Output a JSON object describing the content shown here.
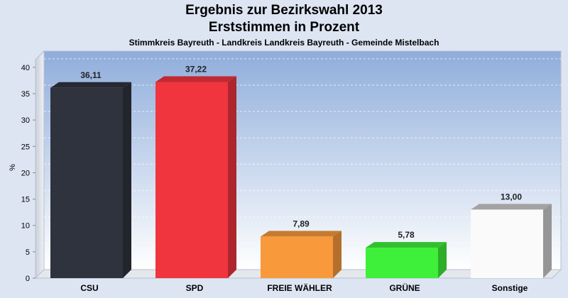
{
  "header": {
    "title": "Ergebnis zur Bezirkswahl 2013",
    "subtitle": "Erststimmen in Prozent",
    "caption": "Stimmkreis Bayreuth - Landkreis Landkreis Bayreuth - Gemeinde Mistelbach"
  },
  "chart_data": {
    "type": "bar",
    "title": "Ergebnis zur Bezirkswahl 2013",
    "subtitle": "Erststimmen in Prozent",
    "xlabel": "",
    "ylabel": "%",
    "ylim": [
      0,
      42
    ],
    "yticks": [
      0,
      5,
      10,
      15,
      20,
      25,
      30,
      35,
      40
    ],
    "grid": true,
    "categories": [
      "CSU",
      "SPD",
      "FREIE WÄHLER",
      "GRÜNE",
      "Sonstige"
    ],
    "values": [
      36.11,
      37.22,
      7.89,
      5.78,
      13.0
    ],
    "value_labels": [
      "36,11",
      "37,22",
      "7,89",
      "5,78",
      "13,00"
    ],
    "colors": [
      "#2f333d",
      "#f0353e",
      "#f89a3c",
      "#3ef03a",
      "#fafafa"
    ]
  }
}
